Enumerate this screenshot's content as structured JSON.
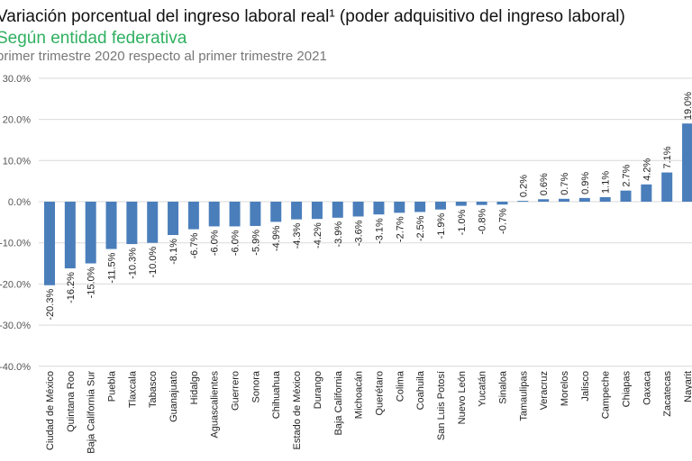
{
  "header": {
    "title": "Variación porcentual del ingreso laboral real¹ (poder adquisitivo del ingreso laboral)",
    "subtitle": "Según entidad federativa",
    "subtitle2": "primer trimestre 2020 respecto al primer trimestre 2021"
  },
  "chart_data": {
    "type": "bar",
    "title": "Variación porcentual del ingreso laboral real¹ (poder adquisitivo del ingreso laboral)",
    "subtitle": "Según entidad federativa",
    "xlabel": "",
    "ylabel": "",
    "ylim": [
      -40,
      30
    ],
    "yticks": [
      30,
      20,
      10,
      0,
      -10,
      -20,
      -30,
      -40
    ],
    "ytick_labels": [
      "30.0%",
      "20.0%",
      "10.0%",
      "0.0%",
      "-10.0%",
      "-20.0%",
      "-30.0%",
      "-40.0%"
    ],
    "grid": true,
    "bar_color": "#4a7ebb",
    "categories": [
      "Ciudad de México",
      "Quintana Roo",
      "Baja California Sur",
      "Puebla",
      "Tlaxcala",
      "Tabasco",
      "Guanajuato",
      "Hidalgo",
      "Aguascalientes",
      "Guerrero",
      "Sonora",
      "Chihuahua",
      "Estado de México",
      "Durango",
      "Baja California",
      "Michoacán",
      "Querétaro",
      "Colima",
      "Coahuila",
      "San Luis Potosí",
      "Nuevo León",
      "Yucatán",
      "Sinaloa",
      "Tamaulipas",
      "Veracruz",
      "Morelos",
      "Jalisco",
      "Campeche",
      "Chiapas",
      "Oaxaca",
      "Zacatecas",
      "Nayarit"
    ],
    "values": [
      -20.3,
      -16.2,
      -15.0,
      -11.5,
      -10.3,
      -10.0,
      -8.1,
      -6.7,
      -6.0,
      -6.0,
      -5.9,
      -4.9,
      -4.3,
      -4.2,
      -3.9,
      -3.6,
      -3.1,
      -2.7,
      -2.5,
      -1.9,
      -1.0,
      -0.8,
      -0.7,
      0.2,
      0.6,
      0.7,
      0.9,
      1.1,
      2.7,
      4.2,
      7.1,
      19.0
    ],
    "data_labels": [
      "-20.3%",
      "-16.2%",
      "-15.0%",
      "-11.5%",
      "-10.3%",
      "-10.0%",
      "-8.1%",
      "-6.7%",
      "-6.0%",
      "-6.0%",
      "-5.9%",
      "-4.9%",
      "-4.3%",
      "-4.2%",
      "-3.9%",
      "-3.6%",
      "-3.1%",
      "-2.7%",
      "-2.5%",
      "-1.9%",
      "-1.0%",
      "-0.8%",
      "-0.7%",
      "0.2%",
      "0.6%",
      "0.7%",
      "0.9%",
      "1.1%",
      "2.7%",
      "4.2%",
      "7.1%",
      "19.0%"
    ]
  }
}
